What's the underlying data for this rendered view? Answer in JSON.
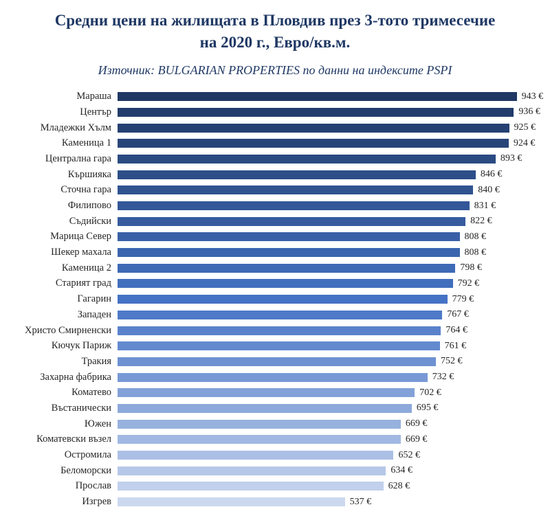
{
  "chart_data": {
    "type": "bar",
    "orientation": "horizontal",
    "title": "Средни цени на жилищата в Пловдив през 3-тото тримесечие на 2020 г., Евро/кв.м.",
    "subtitle": "Източник: BULGARIAN PROPERTIES по данни на индексите PSPI",
    "categories": [
      "Мараша",
      "Център",
      "Младежки Хълм",
      "Каменица 1",
      "Централна гара",
      "Кършияка",
      "Сточна гара",
      "Филипово",
      "Съдийски",
      "Марица Север",
      "Шекер махала",
      "Каменица 2",
      "Старият град",
      "Гагарин",
      "Западен",
      "Христо Смирненски",
      "Кючук Париж",
      "Тракия",
      "Захарна фабрика",
      "Коматево",
      "Въстанически",
      "Южен",
      "Коматевски възел",
      "Остромила",
      "Беломорски",
      "Прослав",
      "Изгрев"
    ],
    "values": [
      943,
      936,
      925,
      924,
      893,
      846,
      840,
      831,
      822,
      808,
      808,
      798,
      792,
      779,
      767,
      764,
      761,
      752,
      732,
      702,
      695,
      669,
      669,
      652,
      634,
      628,
      537
    ],
    "value_suffix": " €",
    "xlim": [
      0,
      1000
    ],
    "grid": false,
    "legend": false,
    "bar_gradient_stops": [
      "#1F3864",
      "#4472C4",
      "#CBD8EF"
    ],
    "title_color": "#1F3864"
  }
}
